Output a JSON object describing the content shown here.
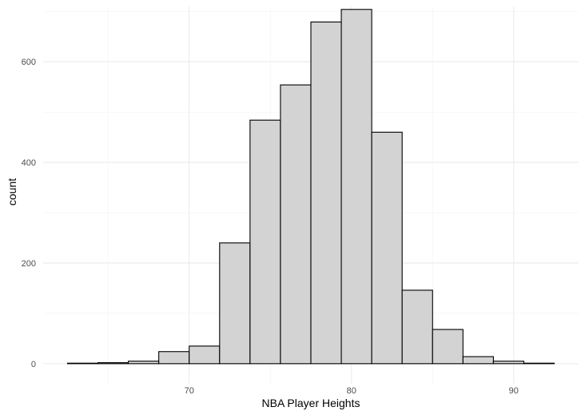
{
  "chart_data": {
    "type": "bar",
    "subtype": "histogram",
    "xlabel": "NBA Player Heights",
    "ylabel": "count",
    "bin_width": 1.875,
    "bins": [
      {
        "x_start": 62.5,
        "x_end": 64.375,
        "count": 1
      },
      {
        "x_start": 64.375,
        "x_end": 66.25,
        "count": 2
      },
      {
        "x_start": 66.25,
        "x_end": 68.125,
        "count": 5
      },
      {
        "x_start": 68.125,
        "x_end": 70.0,
        "count": 24
      },
      {
        "x_start": 70.0,
        "x_end": 71.875,
        "count": 35
      },
      {
        "x_start": 71.875,
        "x_end": 73.75,
        "count": 240
      },
      {
        "x_start": 73.75,
        "x_end": 75.625,
        "count": 484
      },
      {
        "x_start": 75.625,
        "x_end": 77.5,
        "count": 554
      },
      {
        "x_start": 77.5,
        "x_end": 79.375,
        "count": 679
      },
      {
        "x_start": 79.375,
        "x_end": 81.25,
        "count": 704
      },
      {
        "x_start": 81.25,
        "x_end": 83.125,
        "count": 460
      },
      {
        "x_start": 83.125,
        "x_end": 85.0,
        "count": 146
      },
      {
        "x_start": 85.0,
        "x_end": 86.875,
        "count": 68
      },
      {
        "x_start": 86.875,
        "x_end": 88.75,
        "count": 14
      },
      {
        "x_start": 88.75,
        "x_end": 90.625,
        "count": 5
      },
      {
        "x_start": 90.625,
        "x_end": 92.5,
        "count": 1
      }
    ],
    "xlim": [
      61.0,
      94.0
    ],
    "ylim": [
      -40,
      710
    ],
    "x_ticks": [
      70,
      80,
      90
    ],
    "y_ticks": [
      0,
      200,
      400,
      600
    ],
    "grid": true,
    "bar_fill": "#d3d3d3",
    "bar_stroke": "#000000",
    "grid_major_color": "#ebebeb",
    "grid_minor_color": "#f3f3f3"
  }
}
